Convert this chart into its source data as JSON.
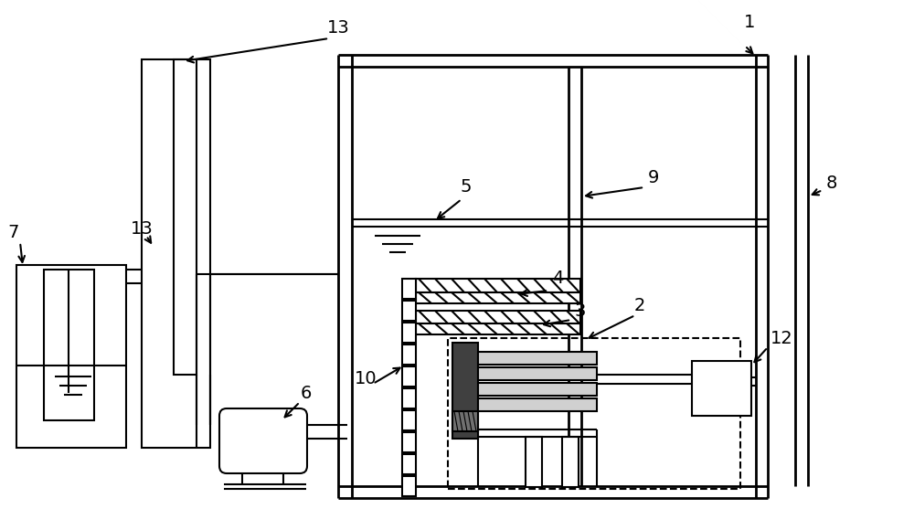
{
  "bg_color": "#ffffff",
  "line_color": "#000000",
  "lw": 1.5,
  "tlw": 2.0,
  "fig_width": 10.0,
  "fig_height": 5.8,
  "dpi": 100
}
